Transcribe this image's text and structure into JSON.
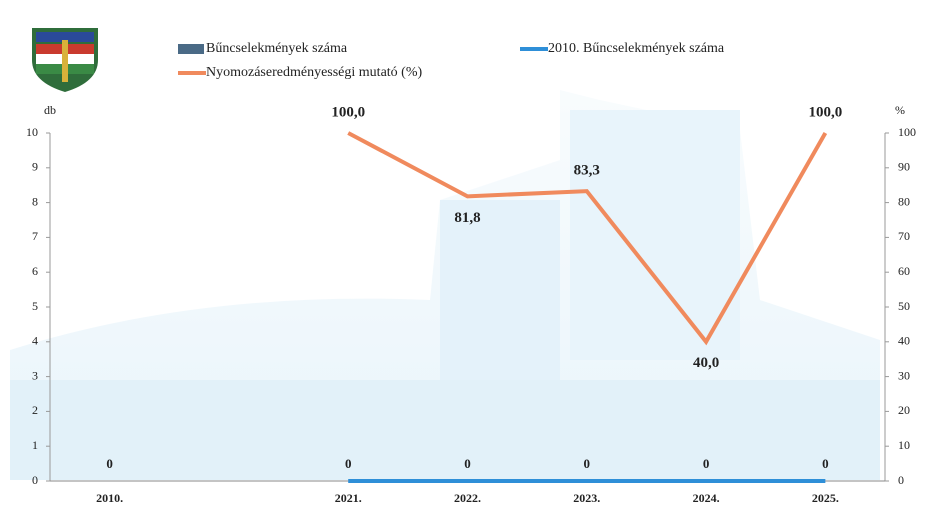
{
  "chart_data": {
    "type": "bar-line",
    "ylabel": "db",
    "y2label": "%",
    "categories": [
      "2010.",
      null,
      "2021.",
      "2022.",
      "2023.",
      "2024.",
      "2025."
    ],
    "series": [
      {
        "name": "Bűncselekmények száma",
        "type": "bar",
        "color": "#4a6a86",
        "values": [
          0,
          null,
          0,
          0,
          0,
          0,
          0
        ]
      },
      {
        "name": "2010. Bűncselekmények száma",
        "type": "line",
        "color": "#2e8fd8",
        "values": [
          0,
          null,
          0,
          0,
          0,
          0,
          0
        ]
      },
      {
        "name": "Nyomozáseredményességi mutató (%)",
        "type": "line",
        "axis": "y2",
        "color": "#f08a5d",
        "values": [
          null,
          null,
          100,
          81.8,
          83.3,
          40,
          100
        ],
        "value_labels": [
          null,
          null,
          "100,0",
          "81,8",
          "83,3",
          "40,0",
          "100,0"
        ]
      }
    ],
    "ylim": [
      0,
      10
    ],
    "yticks": [
      0,
      1,
      2,
      3,
      4,
      5,
      6,
      7,
      8,
      9,
      10
    ],
    "y2lim": [
      0,
      100
    ],
    "y2ticks": [
      0,
      10,
      20,
      30,
      40,
      50,
      60,
      70,
      80,
      90,
      100
    ]
  }
}
